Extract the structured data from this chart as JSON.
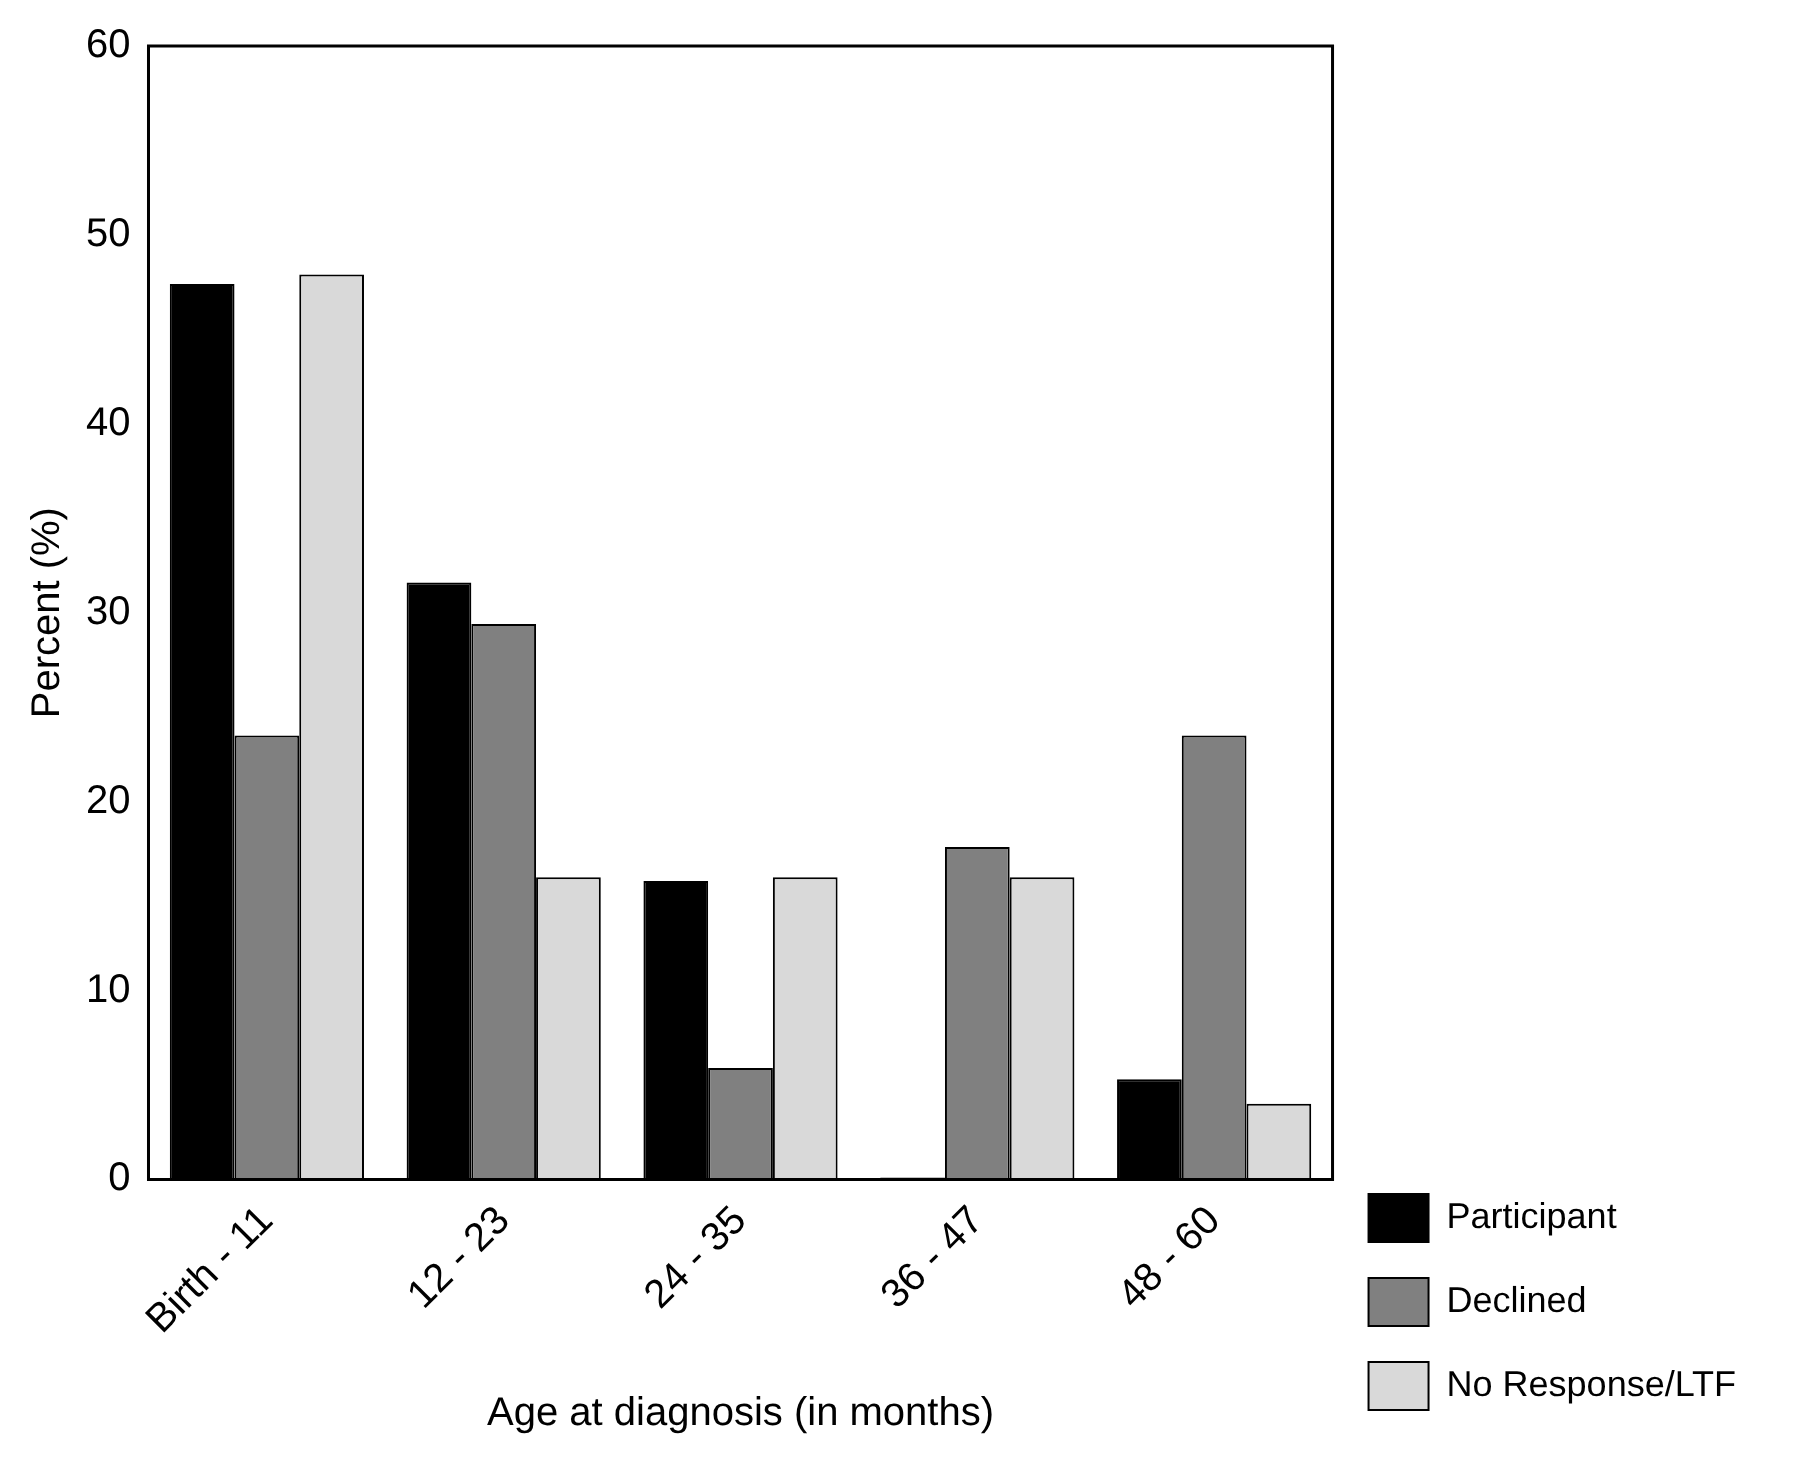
{
  "chart_data": {
    "type": "bar",
    "xlabel": "Age at diagnosis (in months)",
    "ylabel": "Percent (%)",
    "categories": [
      "Birth - 11",
      "12 - 23",
      "24 - 35",
      "36 - 47",
      "48 - 60"
    ],
    "series": [
      {
        "name": "Participant",
        "color": "#000000",
        "values": [
          47.4,
          31.6,
          15.8,
          0,
          5.3
        ]
      },
      {
        "name": "Declined",
        "color": "#808080",
        "values": [
          23.5,
          29.4,
          5.9,
          17.6,
          23.5
        ]
      },
      {
        "name": "No Response/LTF",
        "color": "#d9d9d9",
        "values": [
          47.9,
          16,
          16,
          16,
          4
        ]
      }
    ],
    "ylim": [
      0,
      60
    ],
    "yticks": [
      0,
      10,
      20,
      30,
      40,
      50,
      60
    ],
    "grid": false,
    "legend": "right"
  }
}
